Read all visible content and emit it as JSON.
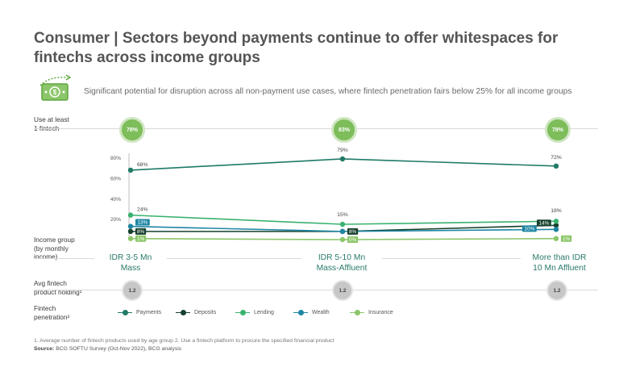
{
  "title": "Consumer | Sectors beyond payments continue to offer whitespaces for fintechs across income groups",
  "subtitle": "Significant potential for disruption across all non-payment use cases, where fintech penetration fairs below 25% for all income groups",
  "icon": "money-growth-icon",
  "rows": {
    "use_fintech_label_1": "Use at least",
    "use_fintech_label_2": "1 fintech",
    "use_fintech_values": [
      "78%",
      "83%",
      "78%"
    ],
    "income_label_1": "Income group",
    "income_label_2": "(by monthly",
    "income_label_3": "income)",
    "avg_label_1": "Avg fintech",
    "avg_label_2": "product holding¹",
    "avg_values": [
      "1.2",
      "1.2",
      "1.2"
    ],
    "penetration_label_1": "Fintech",
    "penetration_label_2": "penetration²"
  },
  "categories_display": [
    [
      "IDR 3-5 Mn",
      "Mass"
    ],
    [
      "IDR 5-10 Mn",
      "Mass-Affluent"
    ],
    [
      "More than IDR",
      "10 Mn Affluent"
    ]
  ],
  "colors": {
    "payments": "#1f7a66",
    "deposits": "#17402e",
    "lending": "#3ab26f",
    "wealth": "#1e86a3",
    "insurance": "#8cc66a",
    "accent_green": "#7dbd5a"
  },
  "chart_data": {
    "type": "line",
    "categories": [
      "IDR 3-5 Mn Mass",
      "IDR 5-10 Mn Mass-Affluent",
      "More than IDR 10 Mn Affluent"
    ],
    "ylim": [
      0,
      80
    ],
    "yticks": [
      "20%",
      "40%",
      "60%",
      "80%"
    ],
    "ytick_values": [
      20,
      40,
      60,
      80
    ],
    "grid": false,
    "legend_position": "bottom",
    "series": [
      {
        "name": "Payments",
        "key": "payments",
        "values": [
          68,
          79,
          72
        ],
        "labels": [
          "68%",
          "79%",
          "72%"
        ],
        "boxed": false
      },
      {
        "name": "Deposits",
        "key": "deposits",
        "values": [
          8,
          8,
          14
        ],
        "labels": [
          "8%",
          "8%",
          "14%"
        ],
        "boxed": true
      },
      {
        "name": "Lending",
        "key": "lending",
        "values": [
          24,
          15,
          18
        ],
        "labels": [
          "24%",
          "15%",
          "18%"
        ],
        "boxed": false
      },
      {
        "name": "Wealth",
        "key": "wealth",
        "values": [
          13,
          8,
          10
        ],
        "labels": [
          "13%",
          "",
          "10%"
        ],
        "boxed": true
      },
      {
        "name": "Insurance",
        "key": "insurance",
        "values": [
          1,
          0,
          1
        ],
        "labels": [
          "1%",
          "0%",
          "1%"
        ],
        "boxed": true
      }
    ]
  },
  "footnote": "1. Average number of fintech products used by age group   2. Use a fintech platform to procure the specified financial product",
  "source_label": "Source:",
  "source_text": " BCG SOFTU Survey (Oct-Nov 2022), BCG analysis"
}
